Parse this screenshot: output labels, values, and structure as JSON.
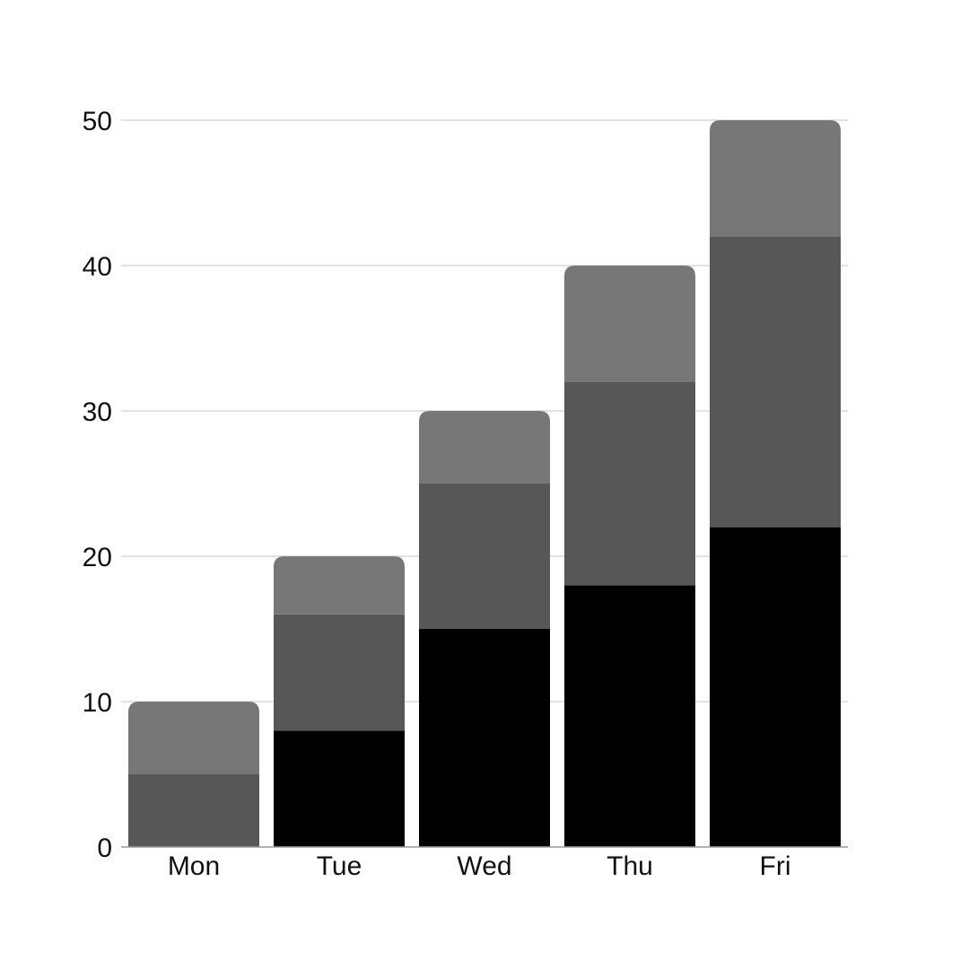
{
  "chart_data": {
    "type": "bar",
    "stacked": true,
    "categories": [
      "Mon",
      "Tue",
      "Wed",
      "Thu",
      "Fri"
    ],
    "series": [
      {
        "values": [
          0,
          8,
          15,
          18,
          22
        ],
        "color": "#000000"
      },
      {
        "values": [
          5,
          8,
          10,
          14,
          20
        ],
        "color": "#575757"
      },
      {
        "values": [
          5,
          4,
          5,
          8,
          8
        ],
        "color": "#777777"
      }
    ],
    "title": "",
    "xlabel": "",
    "ylabel": "",
    "ylim": [
      0,
      50
    ],
    "yticks": [
      0,
      10,
      20,
      30,
      40,
      50
    ],
    "grid": true,
    "legend": "none",
    "colors": {
      "grid": "#d9d9d9",
      "axis": "#9a9a9a",
      "text": "#111111"
    }
  }
}
